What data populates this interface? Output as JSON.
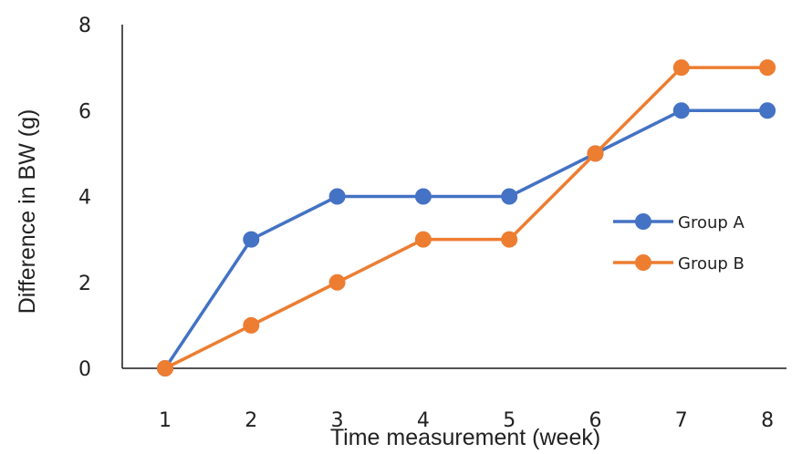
{
  "chart_data": {
    "type": "line",
    "title": "",
    "xlabel": "Time measurement (week)",
    "ylabel": "Difference in BW (g)",
    "x": [
      1,
      2,
      3,
      4,
      5,
      6,
      7,
      8
    ],
    "x_tick_labels": [
      "1",
      "2",
      "3",
      "4",
      "5",
      "6",
      "7",
      "8"
    ],
    "ylim": [
      0,
      8
    ],
    "y_ticks": [
      0,
      2,
      4,
      6,
      8
    ],
    "y_tick_labels": [
      "0",
      "2",
      "4",
      "6",
      "8"
    ],
    "grid": false,
    "legend_position": "right",
    "series": [
      {
        "name": "Group A",
        "color": "#4472C4",
        "values": [
          0,
          3,
          4,
          4,
          4,
          5,
          6,
          6
        ]
      },
      {
        "name": "Group B",
        "color": "#ED7D31",
        "values": [
          0,
          1,
          2,
          3,
          3,
          5,
          7,
          7
        ]
      }
    ]
  }
}
